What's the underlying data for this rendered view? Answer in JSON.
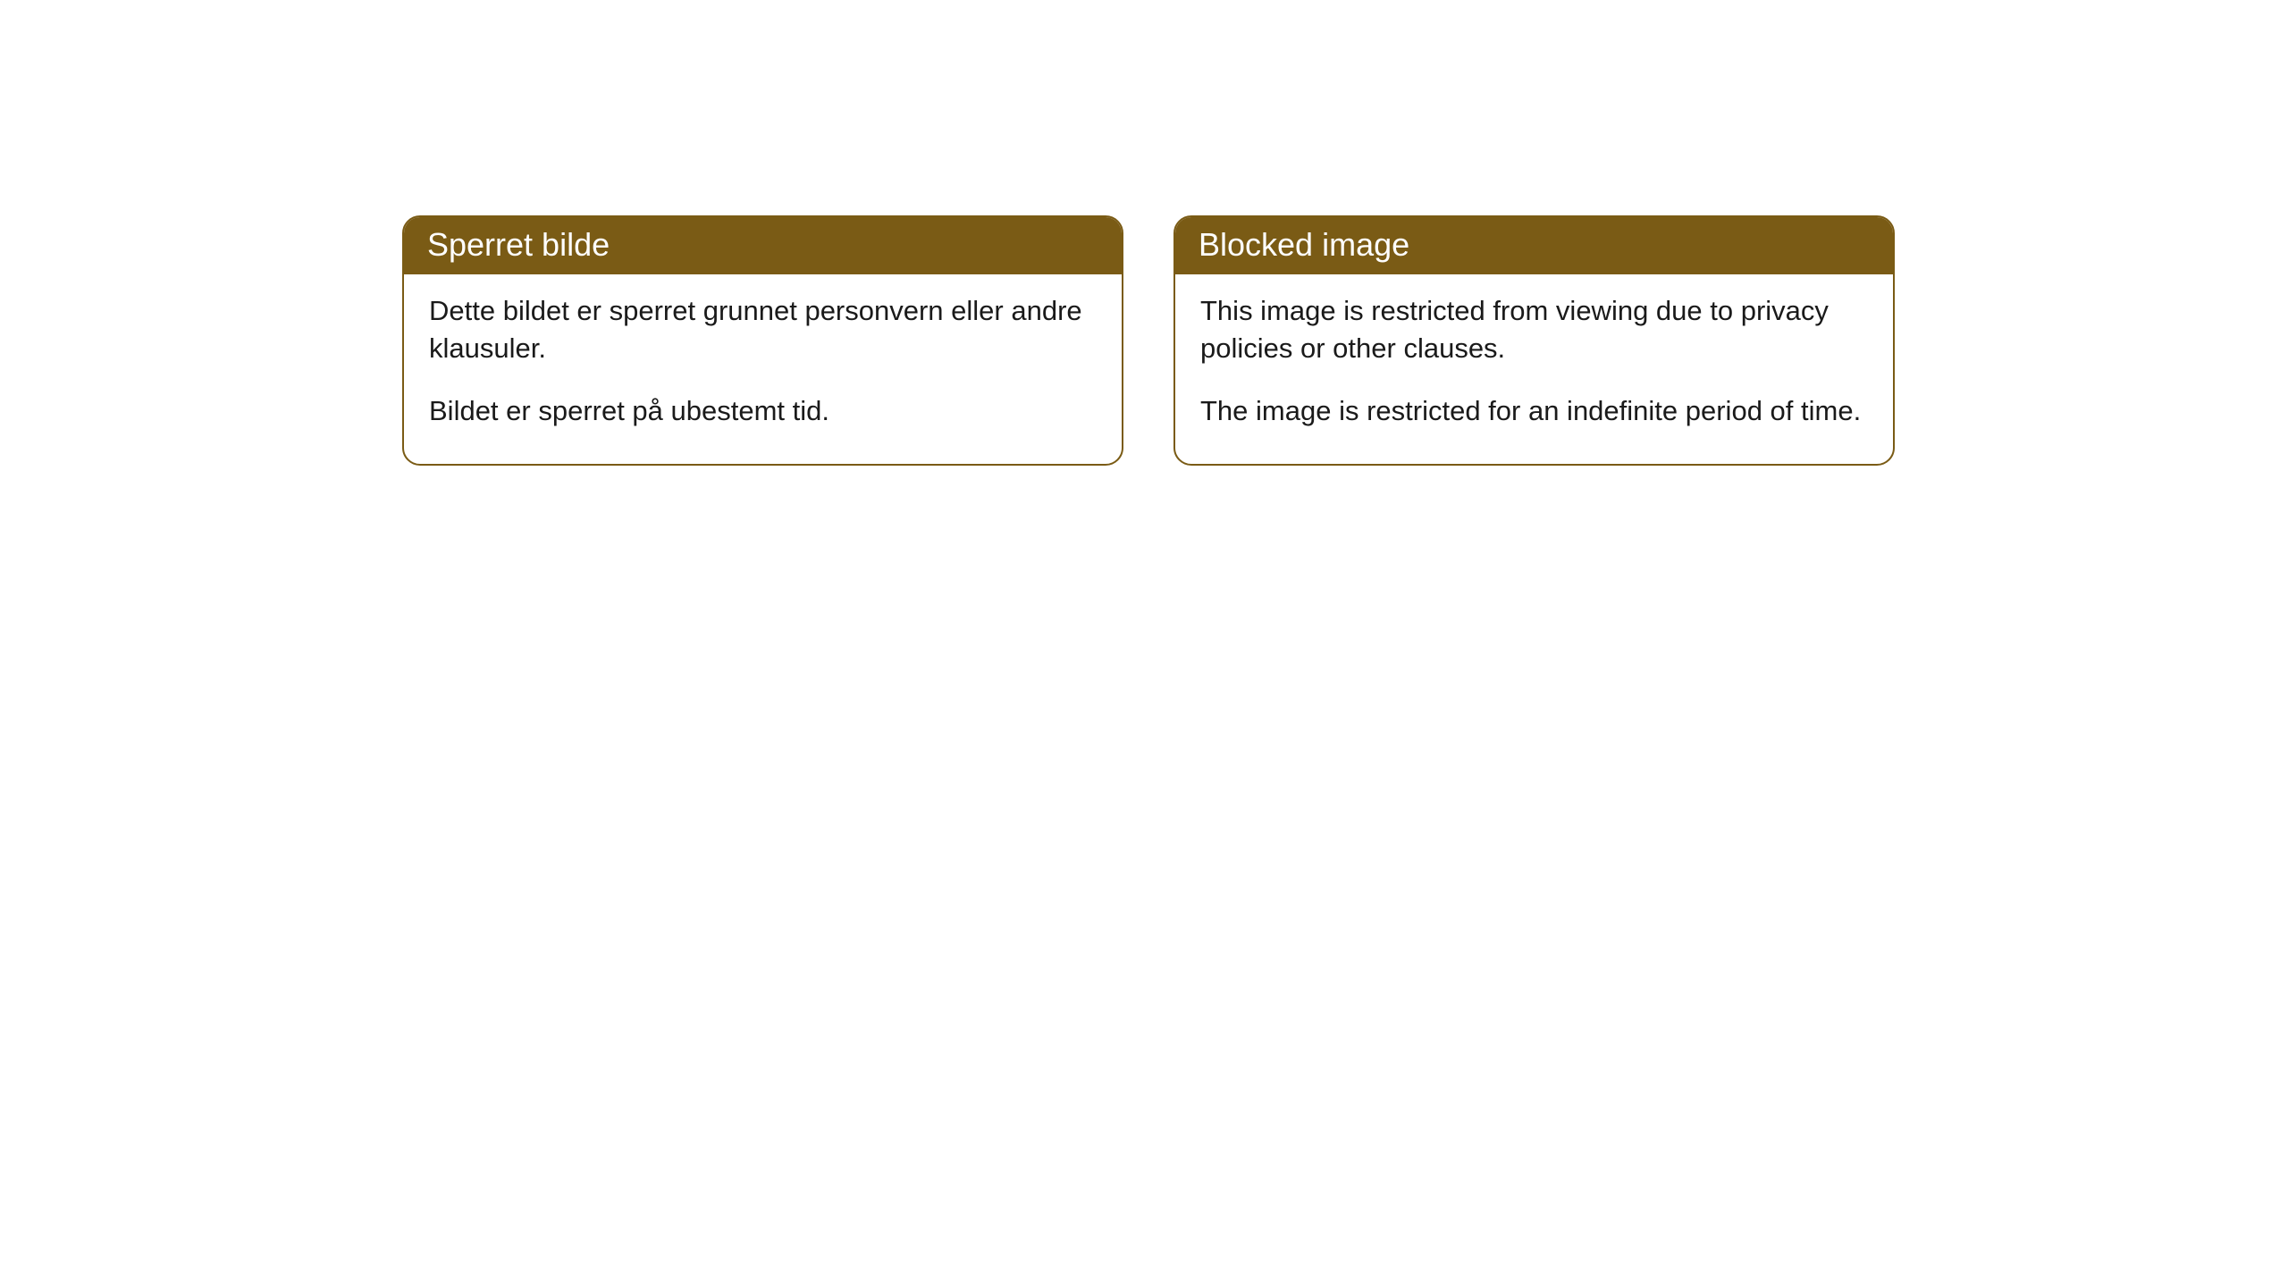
{
  "cards": [
    {
      "title": "Sperret bilde",
      "paragraph1": "Dette bildet er sperret grunnet personvern eller andre klausuler.",
      "paragraph2": "Bildet er sperret på ubestemt tid."
    },
    {
      "title": "Blocked image",
      "paragraph1": "This image is restricted from viewing due to privacy policies or other clauses.",
      "paragraph2": "The image is restricted for an indefinite period of time."
    }
  ],
  "styling": {
    "header_background": "#7a5b15",
    "header_text_color": "#ffffff",
    "border_color": "#7a5b15",
    "body_background": "#ffffff",
    "body_text_color": "#1a1a1a",
    "border_radius": 20,
    "header_fontsize": 36,
    "body_fontsize": 31
  }
}
